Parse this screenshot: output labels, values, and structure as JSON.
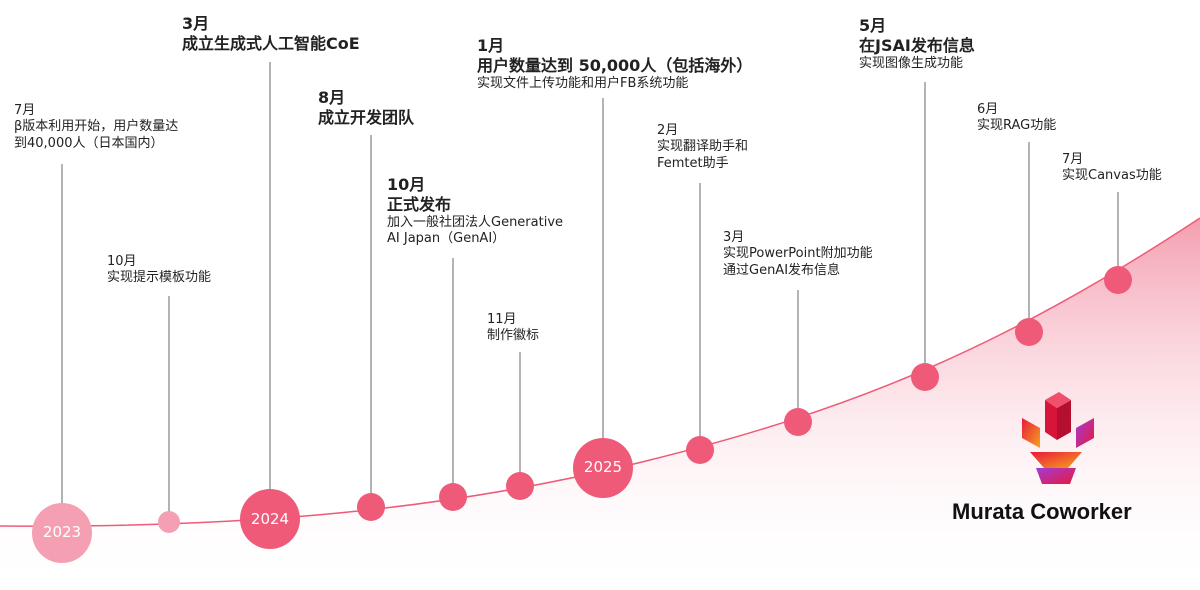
{
  "years": {
    "y2023": "2023",
    "y2024": "2024",
    "y2025": "2025"
  },
  "events": [
    {
      "month": "7月",
      "lines": [
        "β版本利用开始，用户数量达",
        "到40,000人（日本国内）"
      ]
    },
    {
      "month": "3月",
      "headline": "成立生成式人工智能CoE"
    },
    {
      "month": "10月",
      "lines": [
        "实现提示模板功能"
      ]
    },
    {
      "month": "8月",
      "headline": "成立开发团队"
    },
    {
      "month": "10月",
      "headline": "正式发布",
      "lines": [
        "加入一般社团法人Generative",
        "AI Japan（GenAI）"
      ]
    },
    {
      "month": "11月",
      "lines": [
        "制作徽标"
      ]
    },
    {
      "month": "1月",
      "headline": "用户数量达到 50,000人（包括海外）",
      "lines": [
        "实现文件上传功能和用户FB系统功能"
      ]
    },
    {
      "month": "2月",
      "lines": [
        "实现翻译助手和",
        "Femtet助手"
      ]
    },
    {
      "month": "3月",
      "lines": [
        "实现PowerPoint附加功能",
        "通过GenAI发布信息"
      ]
    },
    {
      "month": "5月",
      "headline": "在JSAI发布信息",
      "lines": [
        "实现图像生成功能"
      ]
    },
    {
      "month": "6月",
      "lines": [
        "实现RAG功能"
      ]
    },
    {
      "month": "7月",
      "lines": [
        "实现Canvas功能"
      ]
    }
  ],
  "brand": {
    "name": "Murata Coworker"
  },
  "colors": {
    "accent": "#ee5a78",
    "accent_light": "#f5a0b2",
    "curve_fill": "#f7b3c2",
    "connector": "#9a9a9a"
  }
}
